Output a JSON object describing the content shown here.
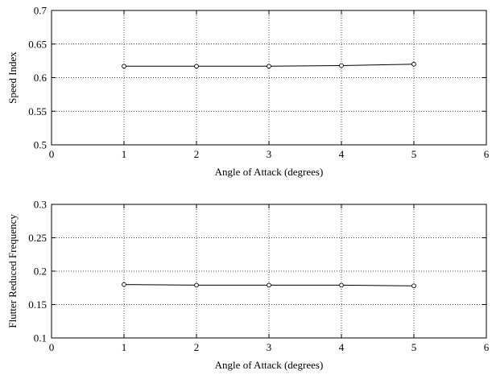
{
  "chart_data": [
    {
      "type": "line",
      "title": "",
      "xlabel": "Angle of Attack (degrees)",
      "ylabel": "Speed Index",
      "xlim": [
        0,
        6
      ],
      "ylim": [
        0.5,
        0.7
      ],
      "x_ticks": [
        "0",
        "1",
        "2",
        "3",
        "4",
        "5",
        "6"
      ],
      "y_ticks": [
        "0.5",
        "0.55",
        "0.6",
        "0.65",
        "0.7"
      ],
      "grid": true,
      "legend": "none",
      "series": [
        {
          "x": [
            1,
            2,
            3,
            4,
            5
          ],
          "y": [
            0.617,
            0.617,
            0.617,
            0.618,
            0.62
          ],
          "marker": "circle",
          "color": "#000000"
        }
      ]
    },
    {
      "type": "line",
      "title": "",
      "xlabel": "Angle of Attack (degrees)",
      "ylabel": "Flutter Reduced Frequency",
      "xlim": [
        0,
        6
      ],
      "ylim": [
        0.1,
        0.3
      ],
      "x_ticks": [
        "0",
        "1",
        "2",
        "3",
        "4",
        "5",
        "6"
      ],
      "y_ticks": [
        "0.1",
        "0.15",
        "0.2",
        "0.25",
        "0.3"
      ],
      "grid": true,
      "legend": "none",
      "series": [
        {
          "x": [
            1,
            2,
            3,
            4,
            5
          ],
          "y": [
            0.18,
            0.179,
            0.179,
            0.179,
            0.178
          ],
          "marker": "circle",
          "color": "#000000"
        }
      ]
    }
  ]
}
